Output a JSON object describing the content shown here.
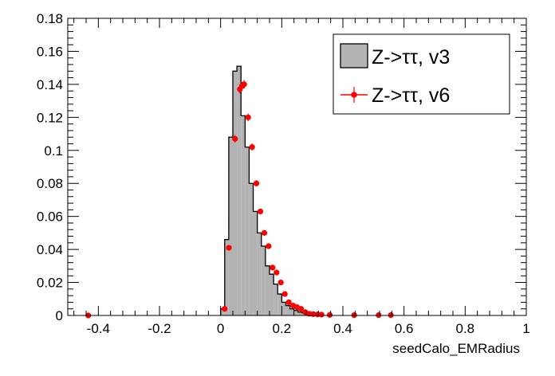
{
  "chart_data": {
    "type": "histogram",
    "xlabel": "seedCalo_EMRadius",
    "ylabel": "",
    "xlim": [
      -0.5,
      1.0
    ],
    "ylim": [
      0,
      0.18
    ],
    "x_ticks": [
      -0.4,
      -0.2,
      0,
      0.2,
      0.4,
      0.6,
      0.8,
      1
    ],
    "x_tick_labels": [
      "-0.4",
      "-0.2",
      "0",
      "0.2",
      "0.4",
      "0.6",
      "0.8",
      "1"
    ],
    "y_ticks": [
      0,
      0.02,
      0.04,
      0.06,
      0.08,
      0.1,
      0.12,
      0.14,
      0.16,
      0.18
    ],
    "y_tick_labels": [
      "0",
      "0.02",
      "0.04",
      "0.06",
      "0.08",
      "0.1",
      "0.12",
      "0.14",
      "0.16",
      "0.18"
    ],
    "legend_position": "top-right",
    "colors": {
      "hist_fill": "#b3b3b3",
      "hist_line": "#000000",
      "marker": "#ff0000"
    },
    "series": [
      {
        "name": "Z->ττ, v3",
        "style": "filled-histogram",
        "bin_width": 0.0133,
        "bins": [
          {
            "x0": 0.0,
            "value": 0.004
          },
          {
            "x0": 0.0133,
            "value": 0.046
          },
          {
            "x0": 0.0267,
            "value": 0.108
          },
          {
            "x0": 0.04,
            "value": 0.148
          },
          {
            "x0": 0.0533,
            "value": 0.151
          },
          {
            "x0": 0.0667,
            "value": 0.121
          },
          {
            "x0": 0.08,
            "value": 0.102
          },
          {
            "x0": 0.0933,
            "value": 0.08
          },
          {
            "x0": 0.1067,
            "value": 0.063
          },
          {
            "x0": 0.12,
            "value": 0.05
          },
          {
            "x0": 0.1333,
            "value": 0.042
          },
          {
            "x0": 0.1467,
            "value": 0.03
          },
          {
            "x0": 0.16,
            "value": 0.025
          },
          {
            "x0": 0.1733,
            "value": 0.019
          },
          {
            "x0": 0.1867,
            "value": 0.013
          },
          {
            "x0": 0.2,
            "value": 0.008
          },
          {
            "x0": 0.2133,
            "value": 0.006
          },
          {
            "x0": 0.2267,
            "value": 0.004
          },
          {
            "x0": 0.24,
            "value": 0.003
          },
          {
            "x0": 0.2533,
            "value": 0.002
          },
          {
            "x0": 0.2667,
            "value": 0.0015
          },
          {
            "x0": 0.28,
            "value": 0.001
          },
          {
            "x0": 0.2933,
            "value": 0.0008
          },
          {
            "x0": 0.3067,
            "value": 0.0006
          }
        ]
      },
      {
        "name": "Z->ττ, v6",
        "style": "markers-with-errors",
        "points": [
          {
            "x": -0.433,
            "y": 0.0
          },
          {
            "x": 0.013,
            "y": 0.004
          },
          {
            "x": 0.027,
            "y": 0.041
          },
          {
            "x": 0.047,
            "y": 0.107
          },
          {
            "x": 0.063,
            "y": 0.137
          },
          {
            "x": 0.07,
            "y": 0.139
          },
          {
            "x": 0.077,
            "y": 0.14
          },
          {
            "x": 0.09,
            "y": 0.12
          },
          {
            "x": 0.103,
            "y": 0.102
          },
          {
            "x": 0.117,
            "y": 0.08
          },
          {
            "x": 0.13,
            "y": 0.063
          },
          {
            "x": 0.143,
            "y": 0.05
          },
          {
            "x": 0.157,
            "y": 0.042
          },
          {
            "x": 0.17,
            "y": 0.029
          },
          {
            "x": 0.183,
            "y": 0.026
          },
          {
            "x": 0.197,
            "y": 0.02
          },
          {
            "x": 0.21,
            "y": 0.013
          },
          {
            "x": 0.223,
            "y": 0.008
          },
          {
            "x": 0.237,
            "y": 0.006
          },
          {
            "x": 0.25,
            "y": 0.005
          },
          {
            "x": 0.263,
            "y": 0.004
          },
          {
            "x": 0.277,
            "y": 0.002
          },
          {
            "x": 0.29,
            "y": 0.001
          },
          {
            "x": 0.303,
            "y": 0.0008
          },
          {
            "x": 0.317,
            "y": 0.0006
          },
          {
            "x": 0.33,
            "y": 0.0005
          },
          {
            "x": 0.357,
            "y": 0.0003
          },
          {
            "x": 0.437,
            "y": 0.0002
          },
          {
            "x": 0.517,
            "y": 0.0002
          },
          {
            "x": 0.557,
            "y": 0.0002
          }
        ]
      }
    ]
  }
}
